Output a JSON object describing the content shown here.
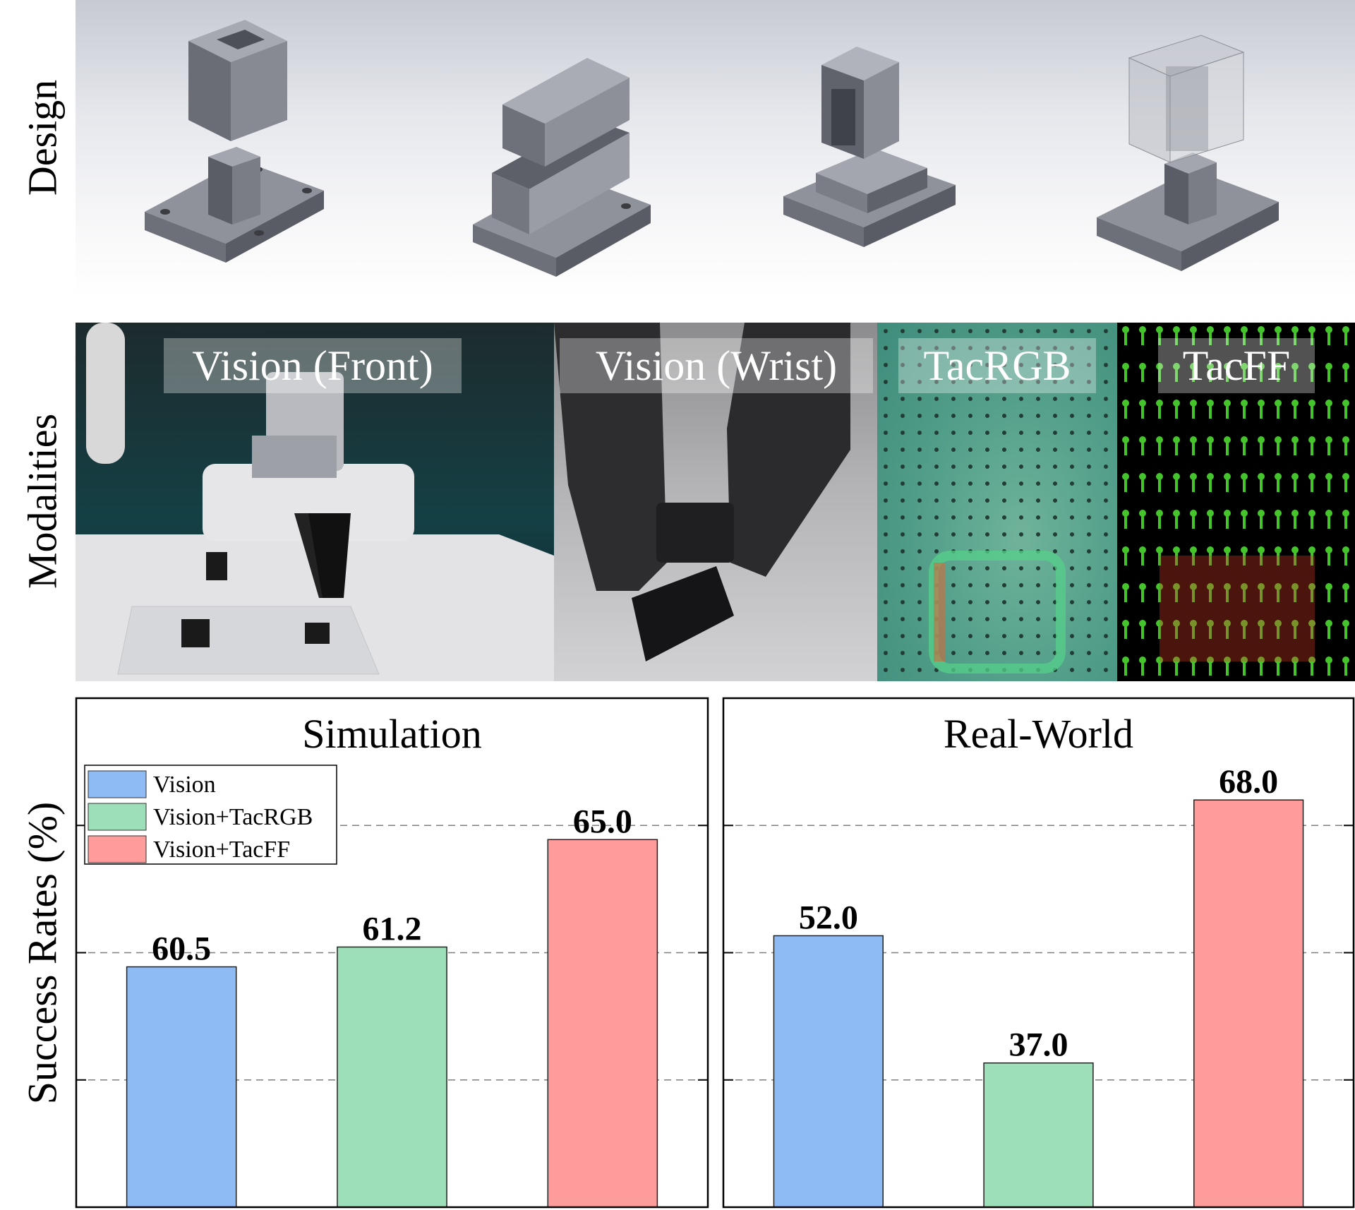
{
  "rows": {
    "design": {
      "label": "Design"
    },
    "modalities": {
      "label": "Modalities"
    }
  },
  "modality_panels": [
    {
      "label": "Vision (Front)"
    },
    {
      "label": "Vision (Wrist)"
    },
    {
      "label": "TacRGB"
    },
    {
      "label": "TacFF"
    }
  ],
  "chart_data": [
    {
      "type": "bar",
      "title": "Simulation",
      "ylabel": "Success Rates (%)",
      "categories": [
        "Vision",
        "Vision+TacRGB",
        "Vision+TacFF"
      ],
      "values": [
        60.5,
        61.2,
        65.0
      ],
      "value_labels": [
        "60.5",
        "61.2",
        "65.0"
      ],
      "ylim": [
        52,
        70
      ],
      "grid": "dashed horizontal",
      "legend": "top-left",
      "colors": [
        "#8fbbf5",
        "#9ddfb9",
        "#fd9c9a"
      ]
    },
    {
      "type": "bar",
      "title": "Real-World",
      "categories": [
        "Vision",
        "Vision+TacRGB",
        "Vision+TacFF"
      ],
      "values": [
        52.0,
        37.0,
        68.0
      ],
      "value_labels": [
        "52.0",
        "37.0",
        "68.0"
      ],
      "ylim": [
        20,
        80
      ],
      "grid": "dashed horizontal",
      "legend": "none",
      "colors": [
        "#8fbbf5",
        "#9ddfb9",
        "#fd9c9a"
      ]
    }
  ]
}
